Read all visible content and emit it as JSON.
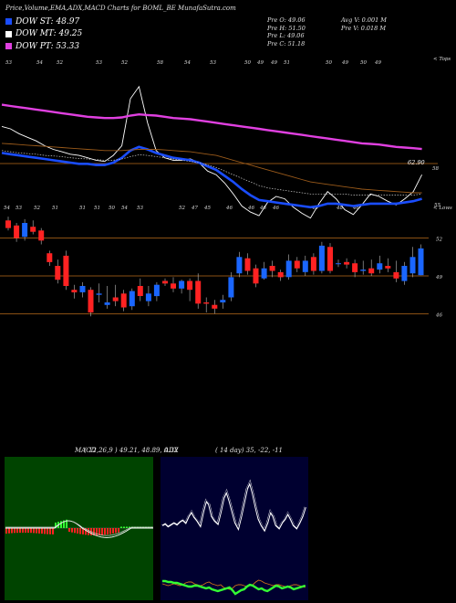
{
  "header": {
    "title": "Price,Volume,EMA,ADX,MACD Charts for BOML_BE MunafaSutra.com"
  },
  "legend": [
    {
      "label": "DOW ST: 48.97",
      "color": "#1a4dff"
    },
    {
      "label": "DOW MT: 49.25",
      "color": "#ffffff"
    },
    {
      "label": "DOW PT: 53.33",
      "color": "#e040e0"
    }
  ],
  "price_info": {
    "left": [
      "Pre  O: 49.06",
      "Pre  H: 51.50",
      "Pre  L: 49.06",
      "Pre  C: 51.18"
    ],
    "right": [
      "Avg V: 0.001 M",
      "Pre  V: 0.018 M"
    ]
  },
  "ema_panel": {
    "top_label": "< Tops",
    "low_label": "< Lows",
    "price_label": "62.90",
    "right_tick": "58",
    "lows_value": "55",
    "top_ticks": [
      "53",
      "54",
      "52",
      "53",
      "52",
      "58",
      "54",
      "53",
      "50",
      "49",
      "49",
      "51",
      "50",
      "49",
      "50",
      "49"
    ],
    "low_ticks": [
      "54",
      "53",
      "52",
      "51",
      "51",
      "51",
      "50",
      "54",
      "53",
      "52",
      "47",
      "45",
      "46",
      "46",
      "46",
      "46",
      "49",
      "48",
      "46"
    ]
  },
  "candle_panel": {
    "price_levels": [
      "52",
      "49",
      "46"
    ]
  },
  "macd": {
    "label": "MACD",
    "values": "( 12,26,9 ) 49.21, 48.89, 0.32"
  },
  "adx": {
    "label": "ADX",
    "values": "( 14 day) 35, -22, -11"
  },
  "chart_data": [
    {
      "type": "line",
      "name": "EMA price panel",
      "x": [
        0,
        1,
        2,
        3,
        4,
        5,
        6,
        7,
        8,
        9,
        10,
        11,
        12,
        13,
        14,
        15,
        16,
        17,
        18,
        19,
        20,
        21,
        22,
        23,
        24,
        25,
        26,
        27,
        28,
        29,
        30,
        31,
        32,
        33,
        34,
        35,
        36,
        37,
        38,
        39,
        40,
        41,
        42,
        43,
        44,
        45,
        46,
        47,
        48,
        49
      ],
      "series": [
        {
          "values": [
            55.2,
            55.0,
            54.6,
            54.3,
            54.0,
            53.6,
            53.3,
            53.1,
            52.9,
            52.8,
            52.6,
            52.4,
            52.3,
            52.8,
            53.6,
            57.5,
            58.5,
            55.5,
            53.2,
            52.6,
            52.4,
            52.4,
            52.5,
            52.2,
            51.5,
            51.2,
            50.5,
            49.6,
            48.6,
            48.1,
            47.8,
            48.9,
            49.4,
            49.2,
            48.5,
            48.0,
            47.6,
            48.8,
            49.8,
            49.2,
            48.3,
            47.9,
            48.7,
            49.6,
            49.4,
            49.0,
            48.7,
            49.2,
            49.8,
            51.2
          ]
        },
        {
          "values": [
            53.0,
            52.9,
            52.8,
            52.7,
            52.6,
            52.5,
            52.4,
            52.3,
            52.2,
            52.1,
            52.1,
            52.0,
            52.0,
            52.2,
            52.6,
            53.2,
            53.5,
            53.3,
            53.0,
            52.8,
            52.6,
            52.5,
            52.4,
            52.2,
            51.9,
            51.6,
            51.1,
            50.6,
            50.0,
            49.5,
            49.1,
            49.0,
            48.9,
            48.8,
            48.7,
            48.6,
            48.5,
            48.6,
            48.8,
            48.8,
            48.7,
            48.6,
            48.7,
            48.8,
            48.8,
            48.8,
            48.8,
            48.9,
            49.0,
            49.2
          ]
        },
        {
          "values": [
            53.2,
            53.1,
            53.0,
            52.95,
            52.9,
            52.8,
            52.75,
            52.7,
            52.6,
            52.55,
            52.5,
            52.45,
            52.4,
            52.4,
            52.5,
            52.7,
            52.85,
            52.8,
            52.7,
            52.6,
            52.5,
            52.4,
            52.3,
            52.2,
            52.0,
            51.8,
            51.5,
            51.2,
            50.9,
            50.6,
            50.3,
            50.1,
            50.0,
            49.9,
            49.8,
            49.7,
            49.6,
            49.6,
            49.6,
            49.6,
            49.6,
            49.5,
            49.5,
            49.5,
            49.5,
            49.5,
            49.5,
            49.5,
            49.5,
            49.6
          ]
        },
        {
          "values": [
            57.0,
            56.9,
            56.8,
            56.7,
            56.6,
            56.5,
            56.4,
            56.3,
            56.2,
            56.1,
            56.0,
            55.95,
            55.9,
            55.9,
            55.95,
            56.1,
            56.2,
            56.15,
            56.1,
            56.0,
            55.9,
            55.85,
            55.8,
            55.7,
            55.6,
            55.5,
            55.4,
            55.3,
            55.2,
            55.1,
            55.0,
            54.9,
            54.8,
            54.7,
            54.6,
            54.5,
            54.4,
            54.3,
            54.2,
            54.1,
            54.0,
            53.9,
            53.8,
            53.75,
            53.7,
            53.6,
            53.5,
            53.45,
            53.4,
            53.33
          ]
        },
        {
          "values": [
            53.8,
            53.75,
            53.7,
            53.65,
            53.6,
            53.55,
            53.5,
            53.45,
            53.4,
            53.35,
            53.3,
            53.25,
            53.2,
            53.2,
            53.2,
            53.25,
            53.3,
            53.3,
            53.3,
            53.25,
            53.2,
            53.15,
            53.1,
            53.0,
            52.9,
            52.8,
            52.6,
            52.4,
            52.2,
            52.0,
            51.8,
            51.6,
            51.4,
            51.2,
            51.0,
            50.8,
            50.6,
            50.5,
            50.4,
            50.3,
            50.2,
            50.1,
            50.0,
            49.95,
            49.9,
            49.85,
            49.8,
            49.75,
            49.7,
            49.7
          ]
        }
      ]
    },
    {
      "type": "candlestick",
      "name": "price candles",
      "candles": [
        [
          53.4,
          52.8,
          53.7,
          52.6
        ],
        [
          53.0,
          52.0,
          53.2,
          51.7
        ],
        [
          52.1,
          53.2,
          53.5,
          51.8
        ],
        [
          52.9,
          52.5,
          53.4,
          52.3
        ],
        [
          52.6,
          51.8,
          52.8,
          51.5
        ],
        [
          50.8,
          50.1,
          51.0,
          49.8
        ],
        [
          49.8,
          48.7,
          50.3,
          48.4
        ],
        [
          50.6,
          48.2,
          51.0,
          47.9
        ],
        [
          47.9,
          47.7,
          48.3,
          47.2
        ],
        [
          47.7,
          48.2,
          48.5,
          47.3
        ],
        [
          47.9,
          46.1,
          48.1,
          45.8
        ],
        [
          47.5,
          47.6,
          48.4,
          46.9
        ],
        [
          46.7,
          46.9,
          48.2,
          46.4
        ],
        [
          47.3,
          47.0,
          48.3,
          46.6
        ],
        [
          47.6,
          46.5,
          47.9,
          46.2
        ],
        [
          46.6,
          47.8,
          48.0,
          46.3
        ],
        [
          48.2,
          47.4,
          48.8,
          47.0
        ],
        [
          47.0,
          47.6,
          48.2,
          46.6
        ],
        [
          47.4,
          48.3,
          48.5,
          47.0
        ],
        [
          48.6,
          48.4,
          48.8,
          48.2
        ],
        [
          48.4,
          48.0,
          48.9,
          47.7
        ],
        [
          48.0,
          48.6,
          48.7,
          47.6
        ],
        [
          48.6,
          47.9,
          48.8,
          47.0
        ],
        [
          48.6,
          46.8,
          49.2,
          46.4
        ],
        [
          46.9,
          46.8,
          47.3,
          46.1
        ],
        [
          46.7,
          46.4,
          47.1,
          46.0
        ],
        [
          46.9,
          47.1,
          47.5,
          46.4
        ],
        [
          47.3,
          48.9,
          49.3,
          47.0
        ],
        [
          49.2,
          50.5,
          50.9,
          48.9
        ],
        [
          50.4,
          49.4,
          50.8,
          49.1
        ],
        [
          49.6,
          48.4,
          49.9,
          48.1
        ],
        [
          48.8,
          49.6,
          50.1,
          48.7
        ],
        [
          49.8,
          49.4,
          50.2,
          48.9
        ],
        [
          49.3,
          48.9,
          49.5,
          48.6
        ],
        [
          48.9,
          50.2,
          50.7,
          48.7
        ],
        [
          50.2,
          49.6,
          50.5,
          49.3
        ],
        [
          49.3,
          50.2,
          50.6,
          49.0
        ],
        [
          50.5,
          49.4,
          50.8,
          49.1
        ],
        [
          49.4,
          51.4,
          51.7,
          49.2
        ],
        [
          51.3,
          49.4,
          51.6,
          49.2
        ],
        [
          50.0,
          50.0,
          50.3,
          49.7
        ],
        [
          50.1,
          49.9,
          50.4,
          49.6
        ],
        [
          50.0,
          49.3,
          50.3,
          48.9
        ],
        [
          49.4,
          49.5,
          50.2,
          49.1
        ],
        [
          49.6,
          49.2,
          50.3,
          49.0
        ],
        [
          49.5,
          50.0,
          50.6,
          49.2
        ],
        [
          49.8,
          49.6,
          50.4,
          49.3
        ],
        [
          49.3,
          48.8,
          50.2,
          48.5
        ],
        [
          48.6,
          49.8,
          50.1,
          48.3
        ],
        [
          49.2,
          50.5,
          51.3,
          48.9
        ],
        [
          49.06,
          51.18,
          51.5,
          49.06
        ]
      ]
    }
  ]
}
